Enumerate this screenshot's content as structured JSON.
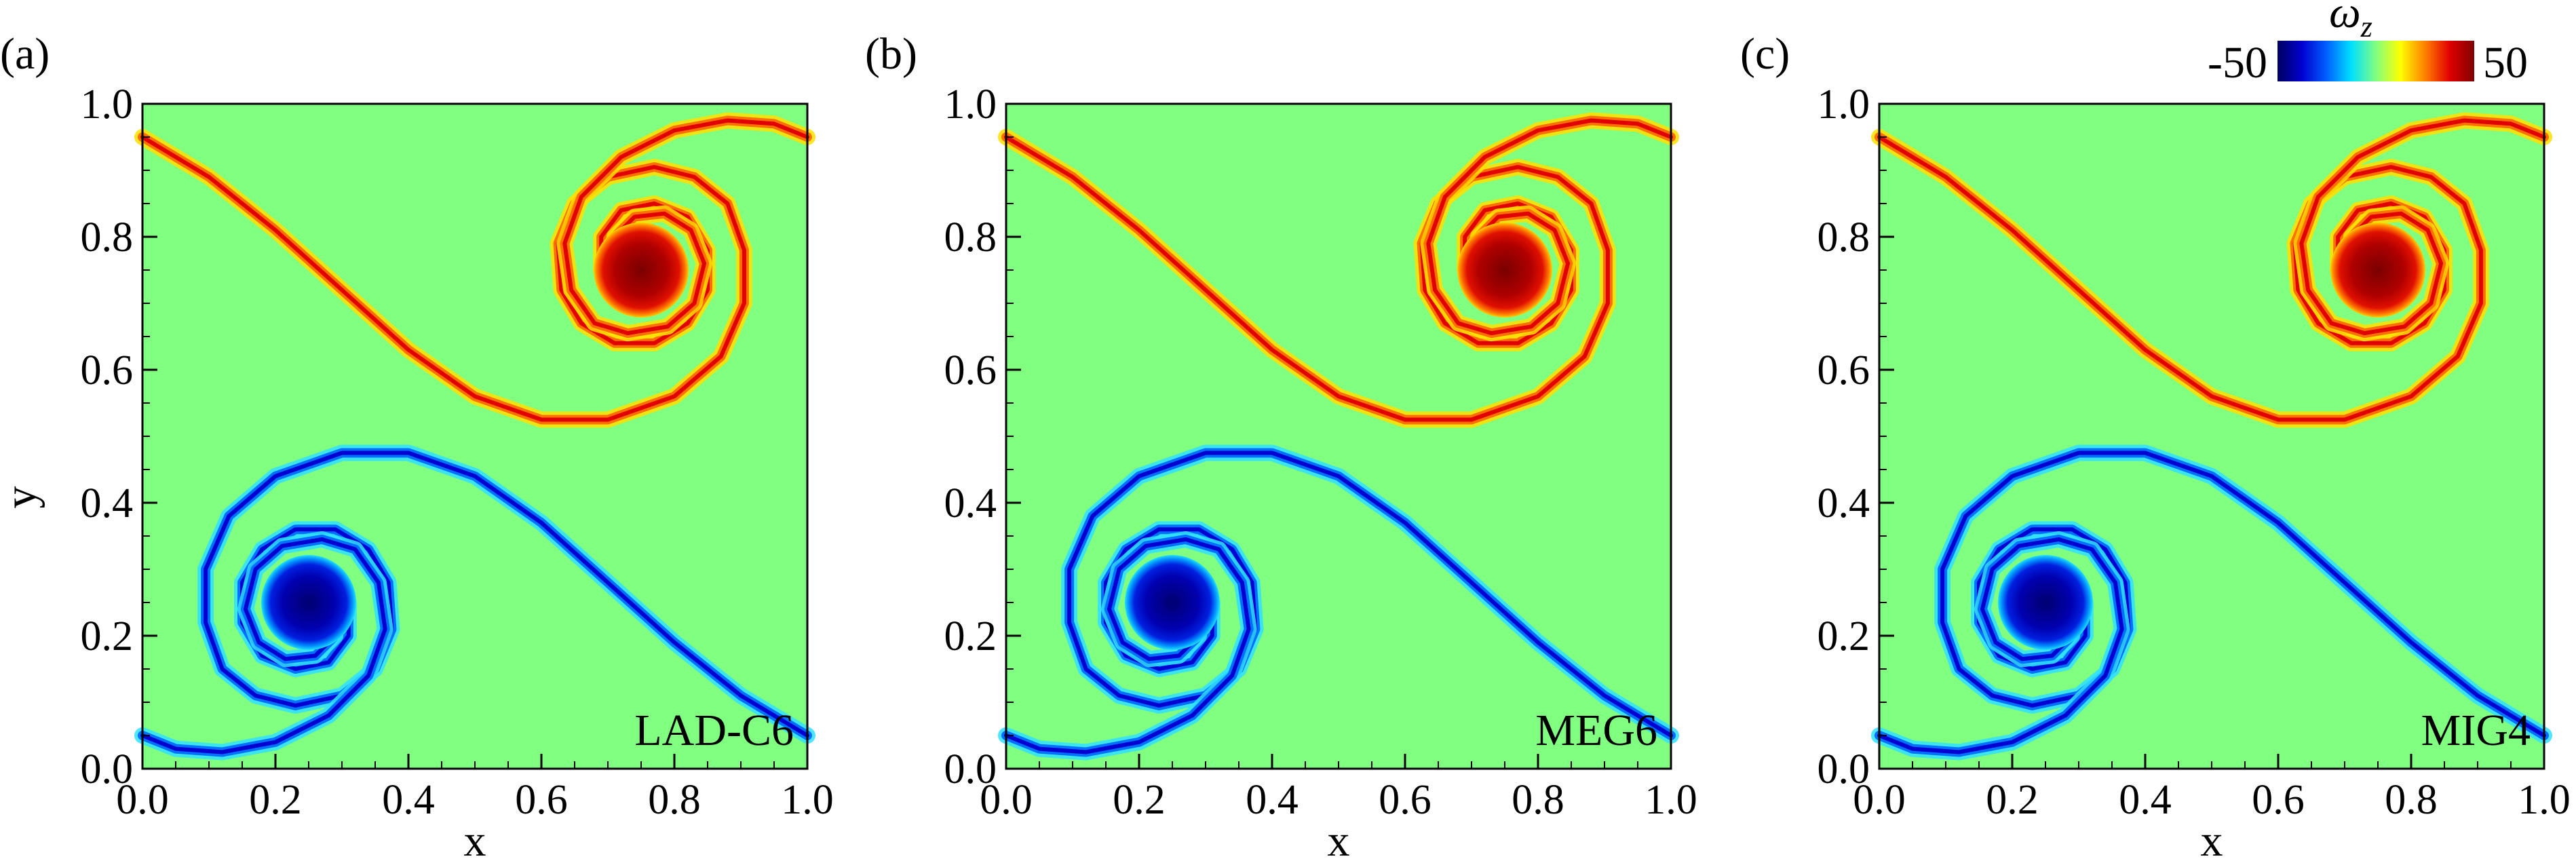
{
  "chart_data": {
    "type": "heatmap",
    "quantity": "vorticity",
    "colorbar": {
      "title_main": "ω",
      "title_sub": "z",
      "min": -50,
      "max": 50,
      "min_label": "-50",
      "max_label": "50",
      "colors": [
        "#000060",
        "#0000d0",
        "#0060ff",
        "#00e0ff",
        "#80ff80",
        "#ffff00",
        "#ff8000",
        "#e00000",
        "#800000"
      ]
    },
    "background_color": "#80ff80",
    "panels": [
      {
        "label": "(a)",
        "method": "LAD-C6",
        "xlabel": "x",
        "ylabel": "y",
        "xlim": [
          0.0,
          1.0
        ],
        "ylim": [
          0.0,
          1.0
        ],
        "xticks": [
          "0.0",
          "0.2",
          "0.4",
          "0.6",
          "0.8",
          "1.0"
        ],
        "yticks": [
          "0.0",
          "0.2",
          "0.4",
          "0.6",
          "0.8",
          "1.0"
        ],
        "vortices": [
          {
            "sign": "positive",
            "center": [
              0.75,
              0.75
            ]
          },
          {
            "sign": "negative",
            "center": [
              0.25,
              0.25
            ]
          }
        ]
      },
      {
        "label": "(b)",
        "method": "MEG6",
        "xlabel": "x",
        "ylabel": "",
        "xlim": [
          0.0,
          1.0
        ],
        "ylim": [
          0.0,
          1.0
        ],
        "xticks": [
          "0.0",
          "0.2",
          "0.4",
          "0.6",
          "0.8",
          "1.0"
        ],
        "yticks": [
          "0.0",
          "0.2",
          "0.4",
          "0.6",
          "0.8",
          "1.0"
        ],
        "vortices": [
          {
            "sign": "positive",
            "center": [
              0.75,
              0.75
            ]
          },
          {
            "sign": "negative",
            "center": [
              0.25,
              0.25
            ]
          }
        ]
      },
      {
        "label": "(c)",
        "method": "MIG4",
        "xlabel": "x",
        "ylabel": "",
        "xlim": [
          0.0,
          1.0
        ],
        "ylim": [
          0.0,
          1.0
        ],
        "xticks": [
          "0.0",
          "0.2",
          "0.4",
          "0.6",
          "0.8",
          "1.0"
        ],
        "yticks": [
          "0.0",
          "0.2",
          "0.4",
          "0.6",
          "0.8",
          "1.0"
        ],
        "vortices": [
          {
            "sign": "positive",
            "center": [
              0.75,
              0.75
            ]
          },
          {
            "sign": "negative",
            "center": [
              0.25,
              0.25
            ]
          }
        ]
      }
    ]
  }
}
